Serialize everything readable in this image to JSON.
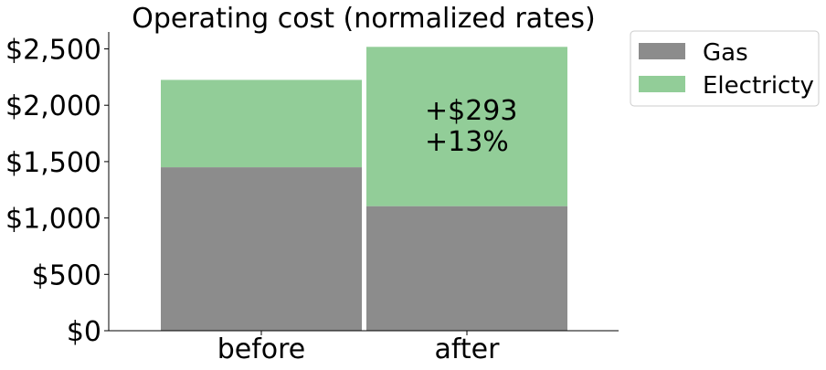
{
  "chart_data": {
    "type": "bar",
    "stacked": true,
    "title": "Operating cost (normalized rates)",
    "xlabel": "",
    "ylabel": "",
    "categories": [
      "before",
      "after"
    ],
    "series": [
      {
        "name": "Gas",
        "values": [
          1450,
          1105
        ],
        "color": "#8c8c8c"
      },
      {
        "name": "Electricty",
        "values": [
          775,
          1413
        ],
        "color": "#92cd98"
      }
    ],
    "ylim": [
      0,
      2650
    ],
    "yticks": [
      0,
      500,
      1000,
      1500,
      2000,
      2500
    ],
    "ytick_labels": [
      "$0",
      "$500",
      "$1,000",
      "$1,500",
      "$2,000",
      "$2,500"
    ],
    "annotation": {
      "category": "after",
      "lines": [
        "+$293",
        "+13%"
      ]
    },
    "legend": {
      "placement": "outside-top-right"
    },
    "grid": false
  }
}
